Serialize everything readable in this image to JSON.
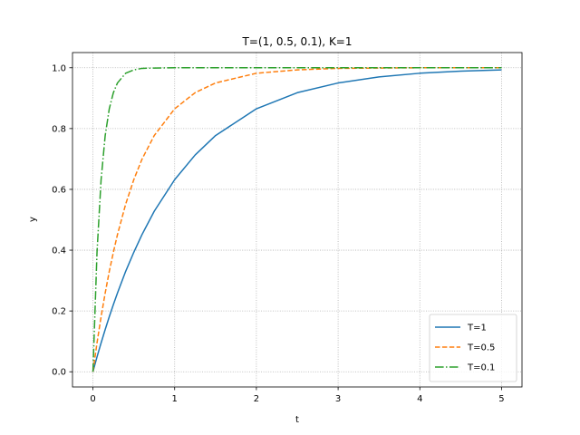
{
  "chart_data": {
    "type": "line",
    "title": "T=(1, 0.5, 0.1), K=1",
    "xlabel": "t",
    "ylabel": "y",
    "xlim": [
      -0.25,
      5.25
    ],
    "ylim": [
      -0.05,
      1.05
    ],
    "xticks": [
      0,
      1,
      2,
      3,
      4,
      5
    ],
    "xtick_labels": [
      "0",
      "1",
      "2",
      "3",
      "4",
      "5"
    ],
    "yticks": [
      0.0,
      0.2,
      0.4,
      0.6,
      0.8,
      1.0
    ],
    "ytick_labels": [
      "0.0",
      "0.2",
      "0.4",
      "0.6",
      "0.8",
      "1.0"
    ],
    "grid": true,
    "legend_position": "lower-right",
    "x": [
      0,
      0.05,
      0.1,
      0.15,
      0.2,
      0.25,
      0.3,
      0.4,
      0.5,
      0.6,
      0.75,
      1.0,
      1.25,
      1.5,
      2.0,
      2.5,
      3.0,
      3.5,
      4.0,
      4.5,
      5.0
    ],
    "series": [
      {
        "name": "T=1",
        "color": "#1f77b4",
        "dash": "solid",
        "values": [
          0.0,
          0.049,
          0.095,
          0.139,
          0.181,
          0.221,
          0.259,
          0.33,
          0.393,
          0.451,
          0.528,
          0.632,
          0.713,
          0.777,
          0.865,
          0.918,
          0.95,
          0.97,
          0.982,
          0.989,
          0.993
        ]
      },
      {
        "name": "T=0.5",
        "color": "#ff7f0e",
        "dash": "dashed",
        "values": [
          0.0,
          0.095,
          0.181,
          0.259,
          0.33,
          0.393,
          0.451,
          0.551,
          0.632,
          0.699,
          0.777,
          0.865,
          0.918,
          0.95,
          0.982,
          0.993,
          0.998,
          0.999,
          1.0,
          1.0,
          1.0
        ]
      },
      {
        "name": "T=0.1",
        "color": "#2ca02c",
        "dash": "dashdot",
        "values": [
          0.0,
          0.393,
          0.632,
          0.777,
          0.865,
          0.918,
          0.95,
          0.982,
          0.993,
          0.998,
          0.999,
          1.0,
          1.0,
          1.0,
          1.0,
          1.0,
          1.0,
          1.0,
          1.0,
          1.0,
          1.0
        ]
      }
    ]
  }
}
